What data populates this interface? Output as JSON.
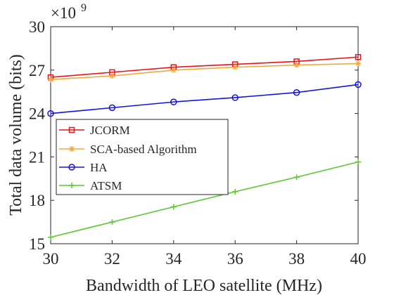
{
  "chart_data": {
    "type": "line",
    "x": [
      30,
      32,
      34,
      36,
      38,
      40
    ],
    "series": [
      {
        "name": "JCORM",
        "values": [
          26.5,
          26.85,
          27.2,
          27.4,
          27.6,
          27.9
        ],
        "color": "#e8141c",
        "marker": "square"
      },
      {
        "name": "SCA-based Algorithm",
        "values": [
          26.35,
          26.6,
          27.0,
          27.2,
          27.35,
          27.45
        ],
        "color": "#f2a93b",
        "marker": "asterisk"
      },
      {
        "name": "HA",
        "values": [
          24.0,
          24.4,
          24.8,
          25.1,
          25.45,
          26.0
        ],
        "color": "#1414e0",
        "marker": "circle"
      },
      {
        "name": "ATSM",
        "values": [
          15.45,
          16.5,
          17.55,
          18.6,
          19.6,
          20.65
        ],
        "color": "#5ac82e",
        "marker": "plus"
      }
    ],
    "xlabel": "Bandwidth of LEO satellite (MHz)",
    "ylabel": "Total data volume (bits)",
    "exponent_label": "×10",
    "exponent_power": "9",
    "xlim": [
      30,
      40
    ],
    "ylim": [
      15,
      30
    ],
    "xticks": [
      "30",
      "32",
      "34",
      "36",
      "38",
      "40"
    ],
    "yticks": [
      "15",
      "18",
      "21",
      "24",
      "27",
      "30"
    ],
    "grid": false,
    "legend_position": "center-left"
  }
}
